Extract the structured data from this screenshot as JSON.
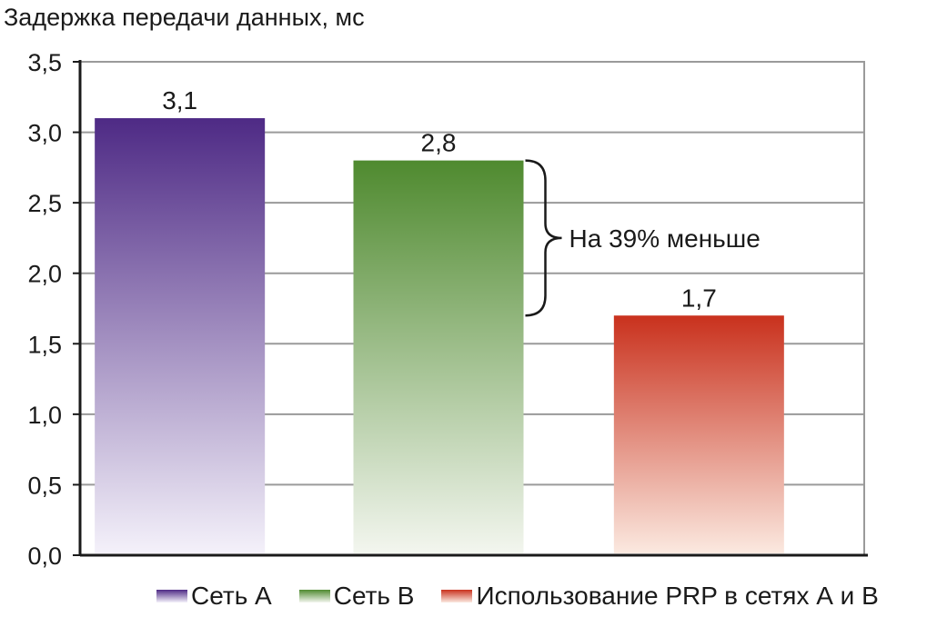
{
  "chart_data": {
    "type": "bar",
    "ylabel": "Задержка передачи данных, мс",
    "ylim": [
      0,
      3.5
    ],
    "yticks": [
      "0,0",
      "0,5",
      "1,0",
      "1,5",
      "2,0",
      "2,5",
      "3,0",
      "3,5"
    ],
    "grid": true,
    "legend_position": "bottom",
    "series": [
      {
        "name": "Сеть А",
        "value": 3.1,
        "label": "3,1",
        "color": "#4e2a85",
        "color_light": "#f4f1fa"
      },
      {
        "name": "Сеть В",
        "value": 2.8,
        "label": "2,8",
        "color": "#4f8a2f",
        "color_light": "#f3f6ef"
      },
      {
        "name": "Использование PRP в сетях А и В",
        "value": 1.7,
        "label": "1,7",
        "color": "#c9311d",
        "color_light": "#fbe9e0"
      }
    ],
    "annotation": {
      "text": "На 39% меньше",
      "from": 2.8,
      "to": 1.7
    }
  }
}
